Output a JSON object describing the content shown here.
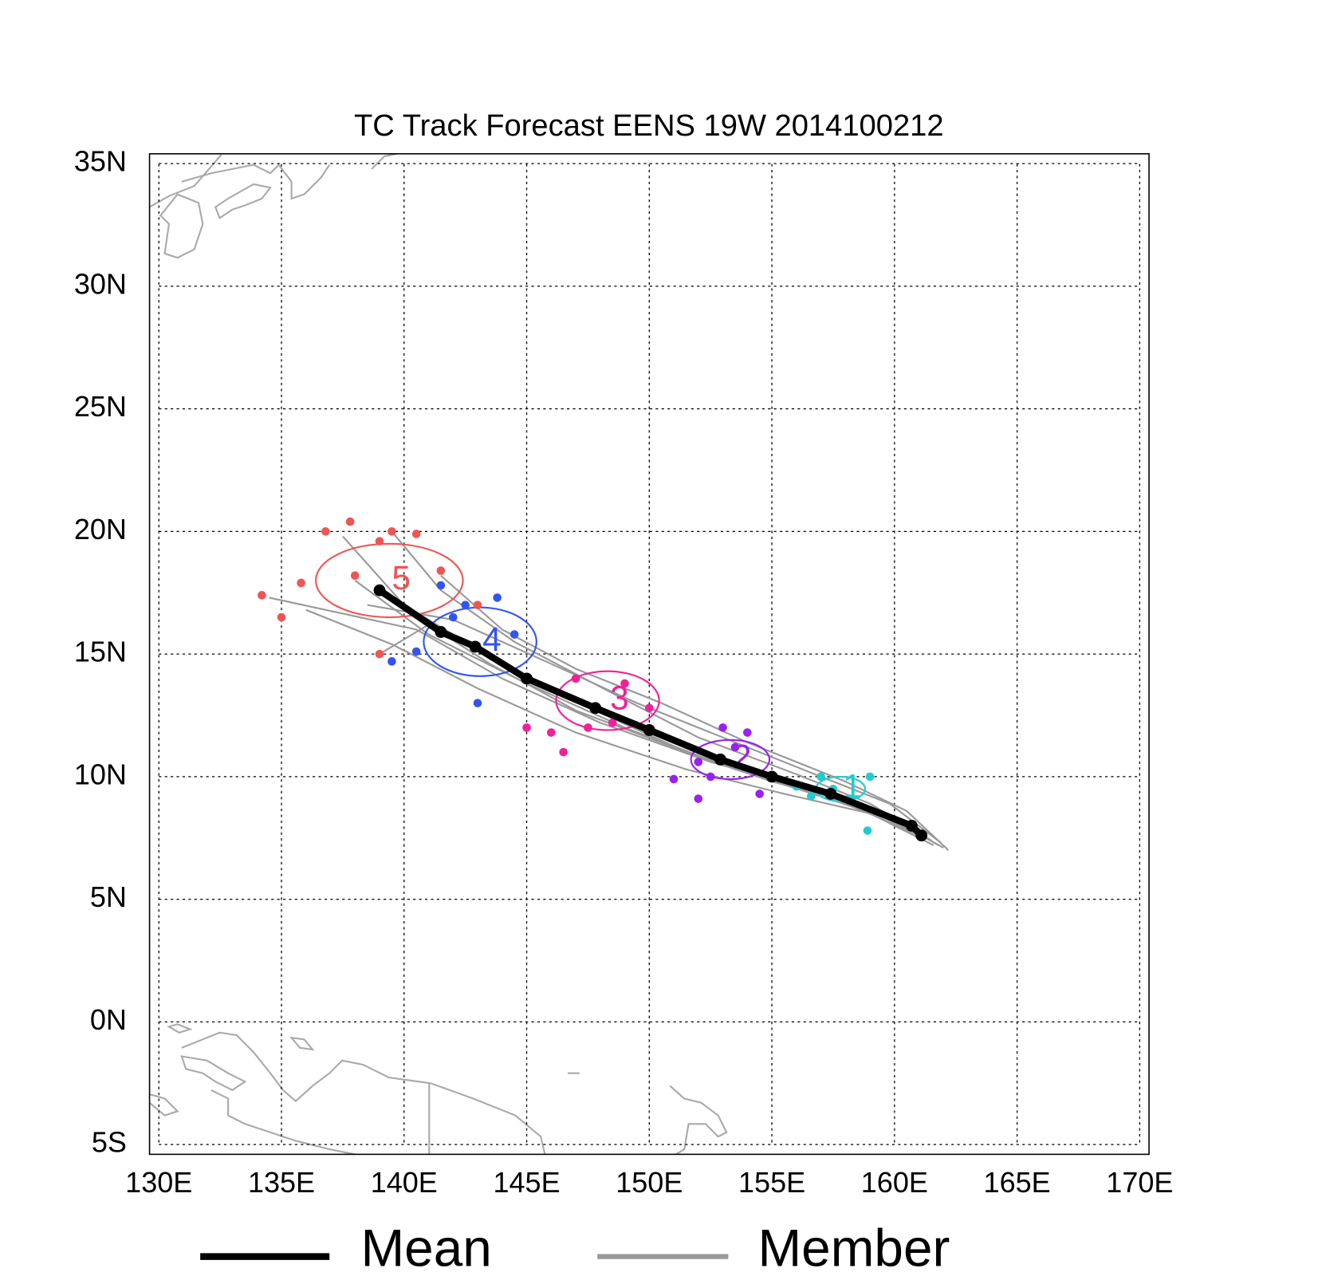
{
  "chart_data": {
    "type": "track",
    "title": "TC Track Forecast EENS  19W  2014100212",
    "xlim": [
      129.62,
      170.38
    ],
    "ylim": [
      -5.4,
      35.4
    ],
    "xticks": [
      {
        "value": 130,
        "label": "130E"
      },
      {
        "value": 135,
        "label": "135E"
      },
      {
        "value": 140,
        "label": "140E"
      },
      {
        "value": 145,
        "label": "145E"
      },
      {
        "value": 150,
        "label": "150E"
      },
      {
        "value": 155,
        "label": "155E"
      },
      {
        "value": 160,
        "label": "160E"
      },
      {
        "value": 165,
        "label": "165E"
      },
      {
        "value": 170,
        "label": "170E"
      }
    ],
    "yticks": [
      {
        "value": 35,
        "label": "35N"
      },
      {
        "value": 30,
        "label": "30N"
      },
      {
        "value": 25,
        "label": "25N"
      },
      {
        "value": 20,
        "label": "20N"
      },
      {
        "value": 15,
        "label": "15N"
      },
      {
        "value": 10,
        "label": "10N"
      },
      {
        "value": 5,
        "label": "5N"
      },
      {
        "value": 0,
        "label": "0N"
      },
      {
        "value": -5,
        "label": "5S"
      }
    ],
    "grid": true,
    "series": [
      {
        "name": "Mean",
        "color": "#000000",
        "x": [
          161.1,
          160.7,
          157.4,
          155.0,
          152.9,
          150.0,
          147.8,
          145.0,
          142.9,
          141.5,
          139.0
        ],
        "values": [
          7.6,
          8.0,
          9.3,
          10.0,
          10.7,
          11.9,
          12.8,
          14.0,
          15.3,
          15.9,
          17.6
        ]
      },
      {
        "name": "Member",
        "color": "#999999",
        "tracks": [
          {
            "x": [
              161.8,
              159.5,
              156.0,
              152.0,
              148.0,
              144.0,
              140.0,
              137.5
            ],
            "values": [
              7.2,
              8.6,
              9.6,
              10.8,
              12.6,
              14.6,
              17.0,
              19.8
            ]
          },
          {
            "x": [
              162.0,
              160.0,
              157.0,
              153.5,
              149.0,
              145.0,
              141.0,
              138.0
            ],
            "values": [
              7.1,
              8.2,
              9.2,
              10.3,
              12.0,
              13.8,
              15.8,
              18.0
            ]
          },
          {
            "x": [
              161.5,
              159.0,
              156.0,
              152.0,
              148.5,
              144.5,
              141.5,
              139.5
            ],
            "values": [
              7.4,
              8.9,
              10.1,
              11.6,
              13.4,
              15.5,
              17.6,
              20.0
            ]
          },
          {
            "x": [
              161.2,
              159.0,
              155.5,
              151.5,
              147.0,
              143.0,
              139.5,
              136.0
            ],
            "values": [
              7.5,
              8.5,
              9.3,
              10.3,
              11.8,
              13.6,
              15.4,
              16.8
            ]
          },
          {
            "x": [
              161.9,
              159.8,
              157.0,
              153.0,
              149.5,
              146.0,
              142.0,
              138.5
            ],
            "values": [
              7.3,
              8.9,
              10.0,
              11.6,
              13.0,
              14.6,
              16.4,
              17.0
            ]
          },
          {
            "x": [
              161.0,
              158.5,
              155.0,
              151.0,
              147.0,
              143.5,
              141.0,
              139.0
            ],
            "values": [
              7.6,
              8.9,
              9.8,
              11.2,
              12.7,
              14.6,
              16.2,
              15.0
            ]
          },
          {
            "x": [
              162.2,
              160.5,
              158.0,
              154.0,
              150.5,
              147.0,
              144.0,
              141.5
            ],
            "values": [
              7.0,
              8.6,
              9.8,
              11.4,
              13.0,
              14.4,
              16.0,
              18.2
            ]
          },
          {
            "x": [
              161.6,
              159.2,
              156.5,
              152.5,
              148.0,
              144.0,
              140.5,
              134.5
            ],
            "values": [
              7.2,
              8.4,
              9.5,
              10.6,
              12.2,
              14.0,
              16.0,
              17.3
            ]
          }
        ]
      }
    ],
    "days": [
      {
        "label": "1",
        "color": "#22cccc",
        "cx": 157.8,
        "cy": 9.5,
        "rx": 1.0,
        "ry": 0.5,
        "x": [
          156.0,
          157.0,
          158.2,
          159.0,
          158.9,
          157.5,
          156.6
        ],
        "values": [
          9.6,
          10.0,
          9.1,
          10.0,
          7.8,
          9.5,
          9.2
        ]
      },
      {
        "label": "2",
        "color": "#9a22ee",
        "cx": 153.3,
        "cy": 10.7,
        "rx": 1.6,
        "ry": 0.8,
        "x": [
          152.0,
          153.0,
          154.0,
          152.5,
          151.0,
          154.5,
          152.0,
          153.5
        ],
        "values": [
          9.1,
          12.0,
          11.8,
          10.0,
          9.9,
          9.3,
          10.6,
          11.2
        ]
      },
      {
        "label": "3",
        "color": "#ee2299",
        "cx": 148.3,
        "cy": 13.1,
        "rx": 2.1,
        "ry": 1.2,
        "x": [
          146.0,
          147.0,
          149.0,
          145.0,
          148.5,
          146.5,
          150.0,
          147.5
        ],
        "values": [
          11.8,
          14.0,
          13.8,
          12.0,
          12.2,
          11.0,
          12.8,
          12.0
        ]
      },
      {
        "label": "4",
        "color": "#3355ee",
        "cx": 143.1,
        "cy": 15.5,
        "rx": 2.3,
        "ry": 1.4,
        "x": [
          141.5,
          142.5,
          144.5,
          143.0,
          140.5,
          139.5,
          142.0,
          143.8
        ],
        "values": [
          17.8,
          17.0,
          15.8,
          13.0,
          15.1,
          14.7,
          16.5,
          17.3
        ]
      },
      {
        "label": "5",
        "color": "#ee5555",
        "cx": 139.4,
        "cy": 18.0,
        "rx": 3.0,
        "ry": 1.5,
        "x": [
          137.8,
          139.5,
          140.5,
          136.8,
          134.2,
          135.0,
          138.0,
          139.0,
          141.5,
          143.0,
          135.8,
          139.0
        ],
        "values": [
          20.4,
          20.0,
          19.9,
          20.0,
          17.4,
          16.5,
          18.2,
          15.0,
          18.4,
          17.0,
          17.9,
          19.6
        ]
      }
    ]
  }
}
